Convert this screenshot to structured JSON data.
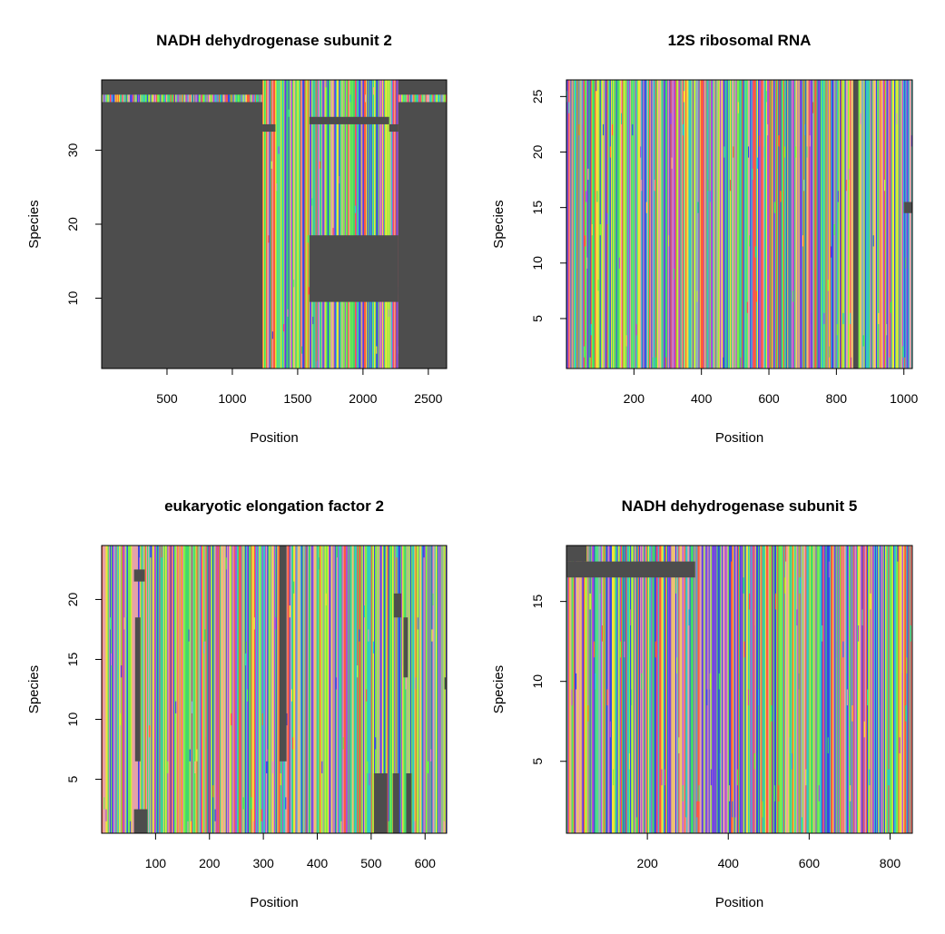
{
  "colors": {
    "gap": "#4d4d4d",
    "nucleotides": [
      "#ff5a3c",
      "#f1e33a",
      "#7bf046",
      "#42d96a",
      "#33c9c4",
      "#3a46e6",
      "#b04fd6",
      "#e6a2a8"
    ]
  },
  "chart_data": [
    {
      "type": "heatmap",
      "title": "NADH dehydrogenase subunit 2",
      "xlabel": "Position",
      "ylabel": "Species",
      "xlim": [
        0,
        2640
      ],
      "ylim": [
        0.5,
        39.5
      ],
      "xticks": [
        500,
        1000,
        1500,
        2000,
        2500
      ],
      "yticks": [
        10,
        20,
        30
      ],
      "n_positions": 2640,
      "n_species": 39,
      "gaps": [
        {
          "x": [
            0,
            1230
          ],
          "y": [
            0.5,
            36.5
          ]
        },
        {
          "x": [
            0,
            1230
          ],
          "y": [
            37.5,
            39.5
          ]
        },
        {
          "x": [
            2270,
            2640
          ],
          "y": [
            37.5,
            39.5
          ]
        },
        {
          "x": [
            2270,
            2640
          ],
          "y": [
            0.5,
            36.5
          ]
        },
        {
          "x": [
            1590,
            2270
          ],
          "y": [
            9.5,
            18.5
          ]
        },
        {
          "x": [
            1590,
            2200
          ],
          "y": [
            33.5,
            34.5
          ]
        },
        {
          "x": [
            1230,
            1330
          ],
          "y": [
            32.5,
            33.5
          ]
        },
        {
          "x": [
            2200,
            2270
          ],
          "y": [
            32.5,
            33.5
          ]
        }
      ]
    },
    {
      "type": "heatmap",
      "title": "12S ribosomal RNA",
      "xlabel": "Position",
      "ylabel": "Species",
      "xlim": [
        0,
        1025
      ],
      "ylim": [
        0.5,
        26.5
      ],
      "xticks": [
        200,
        400,
        600,
        800,
        1000
      ],
      "yticks": [
        5,
        10,
        15,
        20,
        25
      ],
      "n_positions": 1025,
      "n_species": 26,
      "gaps": [
        {
          "x": [
            850,
            865
          ],
          "y": [
            0.5,
            26.5
          ]
        },
        {
          "x": [
            1000,
            1025
          ],
          "y": [
            14.5,
            15.5
          ]
        }
      ]
    },
    {
      "type": "heatmap",
      "title": "eukaryotic elongation factor 2",
      "xlabel": "Position",
      "ylabel": "Species",
      "xlim": [
        0,
        640
      ],
      "ylim": [
        0.5,
        24.5
      ],
      "xticks": [
        100,
        200,
        300,
        400,
        500,
        600
      ],
      "yticks": [
        5,
        10,
        15,
        20
      ],
      "n_positions": 640,
      "n_species": 24,
      "gaps": [
        {
          "x": [
            60,
            80
          ],
          "y": [
            21.5,
            22.5
          ]
        },
        {
          "x": [
            60,
            85
          ],
          "y": [
            0.5,
            2.5
          ]
        },
        {
          "x": [
            62,
            72
          ],
          "y": [
            6.5,
            18.5
          ]
        },
        {
          "x": [
            330,
            343
          ],
          "y": [
            6.5,
            24.5
          ]
        },
        {
          "x": [
            505,
            530
          ],
          "y": [
            0.5,
            5.5
          ]
        },
        {
          "x": [
            540,
            552
          ],
          "y": [
            0.5,
            5.5
          ]
        },
        {
          "x": [
            542,
            556
          ],
          "y": [
            18.5,
            20.5
          ]
        },
        {
          "x": [
            565,
            575
          ],
          "y": [
            0.5,
            5.5
          ]
        },
        {
          "x": [
            560,
            568
          ],
          "y": [
            13.5,
            18.5
          ]
        },
        {
          "x": [
            636,
            640
          ],
          "y": [
            12.5,
            13.5
          ]
        }
      ]
    },
    {
      "type": "heatmap",
      "title": "NADH dehydrogenase subunit 5",
      "xlabel": "Position",
      "ylabel": "Species",
      "xlim": [
        0,
        855
      ],
      "ylim": [
        0.5,
        18.5
      ],
      "xticks": [
        200,
        400,
        600,
        800
      ],
      "yticks": [
        5,
        10,
        15
      ],
      "n_positions": 855,
      "n_species": 18,
      "gaps": [
        {
          "x": [
            0,
            50
          ],
          "y": [
            17.5,
            18.5
          ]
        },
        {
          "x": [
            0,
            318
          ],
          "y": [
            16.5,
            17.5
          ]
        }
      ]
    }
  ]
}
